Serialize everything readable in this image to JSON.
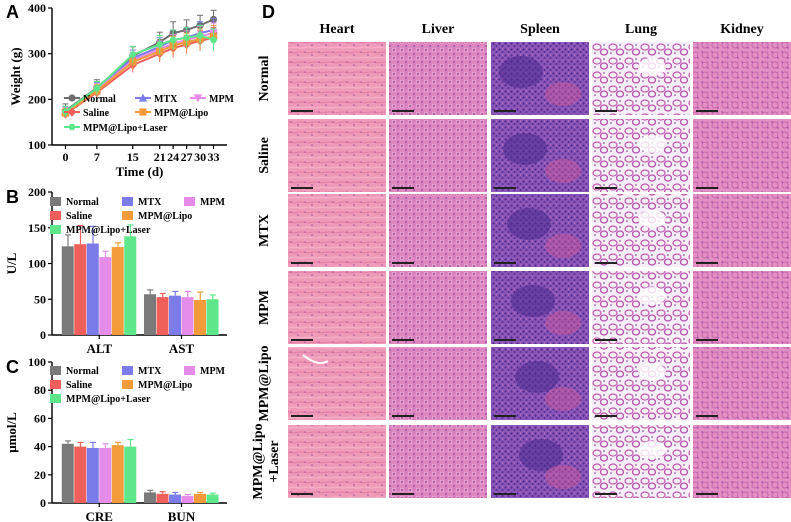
{
  "panels": {
    "A": {
      "letter": "A",
      "chart_data": {
        "type": "line",
        "title": "",
        "xlabel": "Time (d)",
        "ylabel": "Weight (g)",
        "x": [
          0,
          7,
          15,
          21,
          24,
          27,
          30,
          33
        ],
        "ylim": [
          100,
          400
        ],
        "yticks": [
          100,
          200,
          300,
          400
        ],
        "series": [
          {
            "name": "Normal",
            "color": "#6e6e6e",
            "marker": "circle",
            "values": [
              175,
              225,
              295,
              325,
              345,
              352,
              362,
              375
            ],
            "err": [
              15,
              18,
              20,
              22,
              25,
              22,
              22,
              20
            ]
          },
          {
            "name": "MTX",
            "color": "#7b7bea",
            "marker": "triangle",
            "values": [
              172,
              222,
              290,
              315,
              330,
              335,
              345,
              352
            ],
            "err": [
              12,
              15,
              18,
              20,
              22,
              22,
              25,
              25
            ]
          },
          {
            "name": "MPM",
            "color": "#e48ce8",
            "marker": "triangle-down",
            "values": [
              170,
              220,
              285,
              310,
              322,
              330,
              338,
              345
            ],
            "err": [
              12,
              15,
              18,
              18,
              20,
              20,
              22,
              22
            ]
          },
          {
            "name": "Saline",
            "color": "#f0605a",
            "marker": "diamond",
            "values": [
              168,
              215,
              275,
              300,
              312,
              320,
              328,
              335
            ],
            "err": [
              10,
              14,
              16,
              18,
              20,
              20,
              22,
              22
            ]
          },
          {
            "name": "MPM@Lipo",
            "color": "#f39a3a",
            "marker": "square",
            "values": [
              170,
              218,
              282,
              305,
              318,
              325,
              332,
              338
            ],
            "err": [
              10,
              14,
              16,
              18,
              20,
              20,
              22,
              24
            ]
          },
          {
            "name": "MPM@Lipo+Laser",
            "color": "#5ee68a",
            "marker": "hexagon",
            "values": [
              173,
              224,
              298,
              320,
              330,
              335,
              340,
              330
            ],
            "err": [
              12,
              15,
              18,
              20,
              22,
              22,
              22,
              24
            ]
          }
        ]
      }
    },
    "B": {
      "letter": "B",
      "chart_data": {
        "type": "bar",
        "title": "",
        "xlabel": "",
        "ylabel": "U/L",
        "categories": [
          "ALT",
          "AST"
        ],
        "ylim": [
          0,
          200
        ],
        "yticks": [
          0,
          50,
          100,
          150,
          200
        ],
        "series": [
          {
            "name": "Normal",
            "color": "#7a7a7a",
            "values": [
              124,
              57
            ],
            "err": [
              16,
              6
            ]
          },
          {
            "name": "Saline",
            "color": "#f0605a",
            "values": [
              127,
              53
            ],
            "err": [
              26,
              5
            ]
          },
          {
            "name": "MTX",
            "color": "#7b7bea",
            "values": [
              128,
              55
            ],
            "err": [
              24,
              6
            ]
          },
          {
            "name": "MPM",
            "color": "#e48ce8",
            "values": [
              109,
              53
            ],
            "err": [
              8,
              8
            ]
          },
          {
            "name": "MPM@Lipo",
            "color": "#f39a3a",
            "values": [
              123,
              49
            ],
            "err": [
              6,
              11
            ]
          },
          {
            "name": "MPM@Lipo+Laser",
            "color": "#5ee68a",
            "values": [
              138,
              50
            ],
            "err": [
              16,
              6
            ]
          }
        ]
      }
    },
    "C": {
      "letter": "C",
      "chart_data": {
        "type": "bar",
        "title": "",
        "xlabel": "",
        "ylabel": "μmol/L",
        "categories": [
          "CRE",
          "BUN"
        ],
        "ylim": [
          0,
          100
        ],
        "yticks": [
          0,
          20,
          40,
          60,
          80,
          100
        ],
        "series": [
          {
            "name": "Normal",
            "color": "#7a7a7a",
            "values": [
              42,
              7.5
            ],
            "err": [
              2,
              1.5
            ]
          },
          {
            "name": "Saline",
            "color": "#f0605a",
            "values": [
              40,
              6.5
            ],
            "err": [
              3,
              1.5
            ]
          },
          {
            "name": "MTX",
            "color": "#7b7bea",
            "values": [
              39,
              6
            ],
            "err": [
              4,
              1.5
            ]
          },
          {
            "name": "MPM",
            "color": "#e48ce8",
            "values": [
              39,
              5
            ],
            "err": [
              3,
              1
            ]
          },
          {
            "name": "MPM@Lipo",
            "color": "#f39a3a",
            "values": [
              41,
              6.5
            ],
            "err": [
              2,
              1
            ]
          },
          {
            "name": "MPM@Lipo+Laser",
            "color": "#5ee68a",
            "values": [
              40,
              6
            ],
            "err": [
              5,
              1
            ]
          }
        ]
      }
    },
    "D": {
      "letter": "D",
      "columns": [
        "Heart",
        "Liver",
        "Spleen",
        "Lung",
        "Kidney"
      ],
      "rows": [
        "Normal",
        "Saline",
        "MTX",
        "MPM",
        "MPM@Lipo",
        "MPM@Lipo\n+Laser"
      ],
      "row_lines": [
        [
          "Normal"
        ],
        [
          "Saline"
        ],
        [
          "MTX"
        ],
        [
          "MPM"
        ],
        [
          "MPM@Lipo"
        ],
        [
          "MPM@Lipo",
          "+Laser"
        ]
      ]
    }
  }
}
